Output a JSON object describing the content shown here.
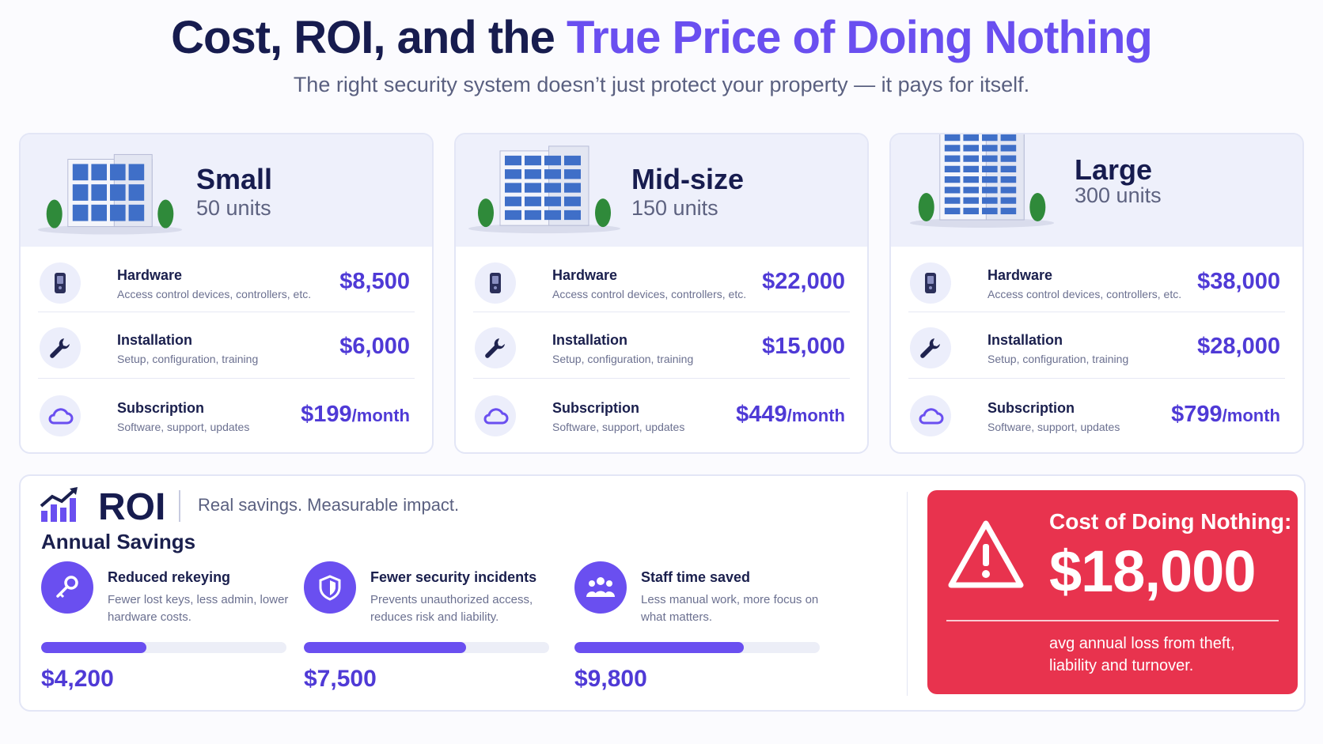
{
  "header": {
    "title_main": "Cost, ROI, and the",
    "title_accent": "True Price of Doing Nothing",
    "subtitle": "The right security system doesn’t just protect your property — it pays for itself."
  },
  "tiers": [
    {
      "name": "Small",
      "units": "50 units",
      "rows": [
        {
          "title": "Hardware",
          "desc": "Access control devices, controllers, etc.",
          "price": "$8,500",
          "suffix": "",
          "icon": "door-panel-icon"
        },
        {
          "title": "Installation",
          "desc": "Setup, configuration, training",
          "price": "$6,000",
          "suffix": "",
          "icon": "wrench-icon"
        },
        {
          "title": "Subscription",
          "desc": "Software, support, updates",
          "price": "$199",
          "suffix": "/month",
          "icon": "cloud-icon"
        }
      ]
    },
    {
      "name": "Mid-size",
      "units": "150 units",
      "rows": [
        {
          "title": "Hardware",
          "desc": "Access control devices, controllers, etc.",
          "price": "$22,000",
          "suffix": "",
          "icon": "door-panel-icon"
        },
        {
          "title": "Installation",
          "desc": "Setup, configuration, training",
          "price": "$15,000",
          "suffix": "",
          "icon": "wrench-icon"
        },
        {
          "title": "Subscription",
          "desc": "Software, support, updates",
          "price": "$449",
          "suffix": "/month",
          "icon": "cloud-icon"
        }
      ]
    },
    {
      "name": "Large",
      "units": "300 units",
      "rows": [
        {
          "title": "Hardware",
          "desc": "Access control devices, controllers, etc.",
          "price": "$38,000",
          "suffix": "",
          "icon": "door-panel-icon"
        },
        {
          "title": "Installation",
          "desc": "Setup, configuration, training",
          "price": "$28,000",
          "suffix": "",
          "icon": "wrench-icon"
        },
        {
          "title": "Subscription",
          "desc": "Software, support, updates",
          "price": "$799",
          "suffix": "/month",
          "icon": "cloud-icon"
        }
      ]
    }
  ],
  "roi": {
    "title": "ROI",
    "tagline": "Real savings. Measurable impact.",
    "annual_label": "Annual Savings",
    "items": [
      {
        "title": "Reduced rekeying",
        "desc": "Fewer lost keys, less admin, lower hardware costs.",
        "value": "$4,200",
        "progress": 0.43,
        "icon": "key-icon"
      },
      {
        "title": "Fewer security incidents",
        "desc": "Prevents unauthorized access, reduces risk and liability.",
        "value": "$7,500",
        "progress": 0.66,
        "icon": "shield-icon"
      },
      {
        "title": "Staff time saved",
        "desc": "Less manual work, more focus on what matters.",
        "value": "$9,800",
        "progress": 0.69,
        "icon": "people-icon"
      }
    ]
  },
  "cost_of_nothing": {
    "label": "Cost of Doing Nothing:",
    "value": "$18,000",
    "note": "avg annual loss from theft, liability and turnover.",
    "icon": "warning-icon"
  },
  "colors": {
    "accent": "#6a4ff0",
    "price": "#4f3ad6",
    "alert": "#e8334e",
    "navy": "#171c4f"
  }
}
